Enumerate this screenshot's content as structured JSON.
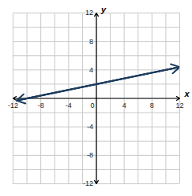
{
  "chart_data": {
    "type": "line",
    "x_label": "x",
    "y_label": "y",
    "x": [
      -11.5,
      12
    ],
    "values": [
      -0.3,
      4.4
    ],
    "color": "#1c3d5e",
    "marker": "arrow",
    "xlim": [
      -12,
      12
    ],
    "ylim": [
      -12,
      12
    ],
    "xticks": [
      -12,
      -8,
      -4,
      0,
      4,
      8,
      12
    ],
    "yticks": [
      -12,
      -8,
      -4,
      0,
      4,
      8,
      12
    ],
    "grid": true
  }
}
